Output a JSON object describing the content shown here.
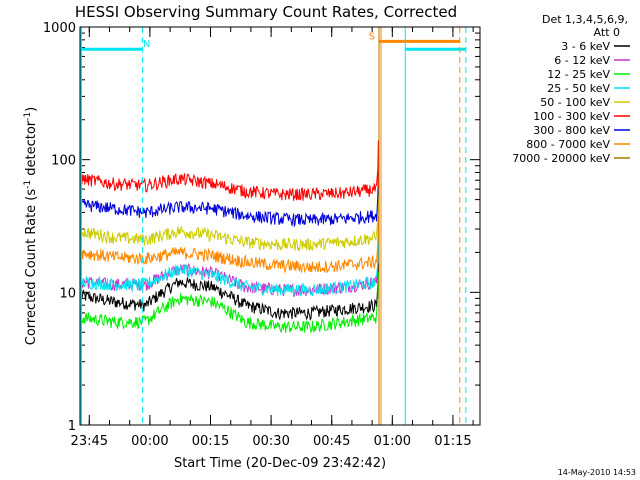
{
  "chart_data": {
    "type": "line",
    "title": "HESSI Observing Summary Count Rates, Corrected",
    "xlabel": "Start Time (20-Dec-09 23:42:42)",
    "ylabel_main": "Corrected Count Rate (s",
    "ylabel_sup1": "-1",
    "ylabel_mid": " detector",
    "ylabel_sup2": "-1",
    "ylabel_end": ")",
    "y_scale": "log",
    "ylim": [
      1,
      1000
    ],
    "y_ticks": [
      {
        "value": 1,
        "label": "1"
      },
      {
        "value": 10,
        "label": "10"
      },
      {
        "value": 100,
        "label": "100"
      },
      {
        "value": 1000,
        "label": "1000"
      }
    ],
    "x_unit": "minutes after 23:42:42",
    "xlim": [
      0,
      99
    ],
    "x_ticks": [
      {
        "value": 2.3,
        "label": "23:45"
      },
      {
        "value": 17.3,
        "label": "00:00"
      },
      {
        "value": 32.3,
        "label": "00:15"
      },
      {
        "value": 47.3,
        "label": "00:30"
      },
      {
        "value": 62.3,
        "label": "00:45"
      },
      {
        "value": 77.3,
        "label": "01:00"
      },
      {
        "value": 92.3,
        "label": "01:15"
      }
    ],
    "legend_header": [
      "Det 1,3,4,5,6,9,",
      "Att 0"
    ],
    "legend_position": "right",
    "series": [
      {
        "name": "3 - 6 keV",
        "color": "#000000",
        "levels": [
          9.5,
          8.5,
          8,
          12,
          11,
          8,
          7,
          7,
          7.5,
          8
        ]
      },
      {
        "name": "6 - 12 keV",
        "color": "#cc33cc",
        "levels": [
          12,
          11.5,
          11.5,
          15,
          14,
          11,
          10.5,
          10.5,
          11,
          12
        ]
      },
      {
        "name": "12 - 25 keV",
        "color": "#00ee00",
        "levels": [
          6.5,
          6,
          6,
          9,
          8.5,
          6,
          5.5,
          5.5,
          6,
          6.5
        ]
      },
      {
        "name": "25 - 50 keV",
        "color": "#00e5ee",
        "levels": [
          12,
          11.5,
          11.5,
          15,
          13.5,
          11,
          10.5,
          10.5,
          11,
          12
        ]
      },
      {
        "name": "50 - 100 keV",
        "color": "#cccc00",
        "levels": [
          29,
          26,
          25,
          29,
          27,
          24,
          23,
          23,
          24,
          26
        ]
      },
      {
        "name": "100 - 300 keV",
        "color": "#ff0000",
        "levels": [
          72,
          66,
          64,
          72,
          66,
          58,
          55,
          55,
          56,
          60
        ]
      },
      {
        "name": "300 - 800 keV",
        "color": "#0000dd",
        "levels": [
          46,
          43,
          40,
          44,
          43,
          38,
          36,
          35,
          36,
          38
        ]
      },
      {
        "name": "800 - 7000 keV",
        "color": "#ff8800",
        "levels": [
          20,
          18.5,
          18,
          20,
          19,
          17,
          16,
          15.5,
          16,
          17
        ]
      },
      {
        "name": "7000 - 20000 keV",
        "color": "#aa7700",
        "levels": []
      }
    ],
    "flags": [
      {
        "label": "N",
        "color": "#00e5ee",
        "start": 0,
        "end": 15.5,
        "level": 680
      },
      {
        "label": "S",
        "color": "#ff8800",
        "start": 74,
        "end": 94,
        "level": 780
      },
      {
        "label": "",
        "color": "#00e5ee",
        "start": 80.5,
        "end": 95.5,
        "level": 680
      }
    ],
    "footer_date": "14-May-2010 14:53"
  }
}
